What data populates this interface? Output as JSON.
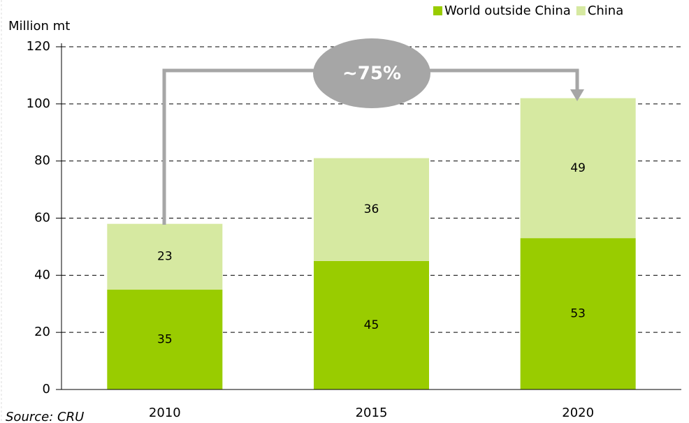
{
  "chart_data": {
    "type": "stacked_bar",
    "y_axis_label": "Million mt",
    "categories": [
      "2010",
      "2015",
      "2020"
    ],
    "series": [
      {
        "name": "World outside China",
        "color": "#99cc00",
        "values": [
          35,
          45,
          53
        ]
      },
      {
        "name": "China",
        "color": "#d6e9a1",
        "values": [
          23,
          36,
          49
        ]
      }
    ],
    "ylim": [
      0,
      120
    ],
    "yticks": [
      0,
      20,
      40,
      60,
      80,
      100,
      120
    ],
    "grid": true,
    "legend": "top-right",
    "annotation": "~75%",
    "source": "Source: CRU"
  }
}
